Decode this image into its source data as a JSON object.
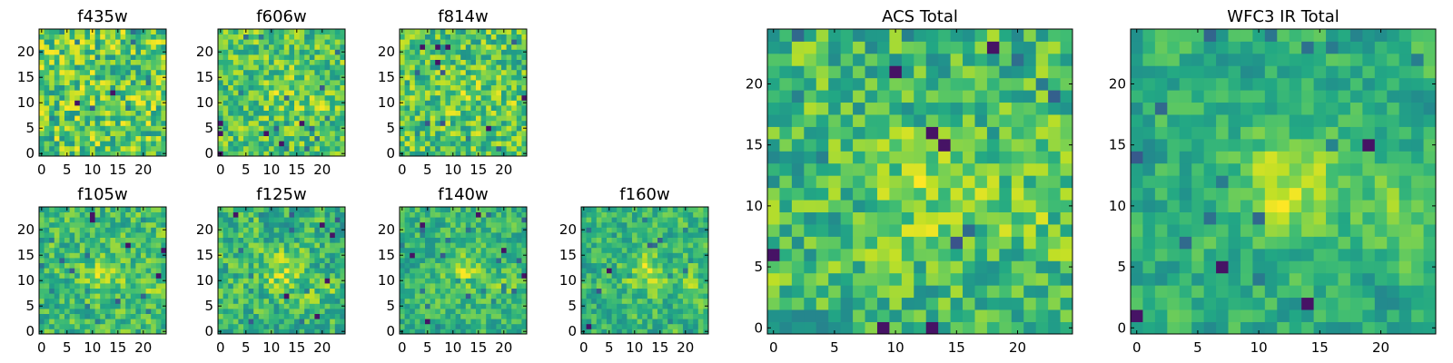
{
  "figure": {
    "colormap": "viridis",
    "grid_size": 25
  },
  "chart_data": [
    {
      "type": "heatmap",
      "title": "f435w",
      "x_ticks": [
        0,
        5,
        10,
        15,
        20
      ],
      "y_ticks": [
        0,
        5,
        10,
        15,
        20
      ],
      "xlim": [
        -0.5,
        24.5
      ],
      "ylim": [
        -0.5,
        24.5
      ],
      "blob": 0.0,
      "seed": 11
    },
    {
      "type": "heatmap",
      "title": "f606w",
      "x_ticks": [
        0,
        5,
        10,
        15,
        20
      ],
      "y_ticks": [
        0,
        5,
        10,
        15,
        20
      ],
      "xlim": [
        -0.5,
        24.5
      ],
      "ylim": [
        -0.5,
        24.5
      ],
      "blob": 0.3,
      "seed": 23
    },
    {
      "type": "heatmap",
      "title": "f814w",
      "x_ticks": [
        0,
        5,
        10,
        15,
        20
      ],
      "y_ticks": [
        0,
        5,
        10,
        15,
        20
      ],
      "xlim": [
        -0.5,
        24.5
      ],
      "ylim": [
        -0.5,
        24.5
      ],
      "blob": 0.2,
      "seed": 37
    },
    {
      "type": "heatmap",
      "title": "f105w",
      "x_ticks": [
        0,
        5,
        10,
        15,
        20
      ],
      "y_ticks": [
        0,
        5,
        10,
        15,
        20
      ],
      "xlim": [
        -0.5,
        24.5
      ],
      "ylim": [
        -0.5,
        24.5
      ],
      "blob": 0.5,
      "seed": 41
    },
    {
      "type": "heatmap",
      "title": "f125w",
      "x_ticks": [
        0,
        5,
        10,
        15,
        20
      ],
      "y_ticks": [
        0,
        5,
        10,
        15,
        20
      ],
      "xlim": [
        -0.5,
        24.5
      ],
      "ylim": [
        -0.5,
        24.5
      ],
      "blob": 0.5,
      "seed": 53
    },
    {
      "type": "heatmap",
      "title": "f140w",
      "x_ticks": [
        0,
        5,
        10,
        15,
        20
      ],
      "y_ticks": [
        0,
        5,
        10,
        15,
        20
      ],
      "xlim": [
        -0.5,
        24.5
      ],
      "ylim": [
        -0.5,
        24.5
      ],
      "blob": 0.6,
      "seed": 67
    },
    {
      "type": "heatmap",
      "title": "f160w",
      "x_ticks": [
        0,
        5,
        10,
        15,
        20
      ],
      "y_ticks": [
        0,
        5,
        10,
        15,
        20
      ],
      "xlim": [
        -0.5,
        24.5
      ],
      "ylim": [
        -0.5,
        24.5
      ],
      "blob": 0.6,
      "seed": 79
    },
    {
      "type": "heatmap",
      "title": "ACS Total",
      "x_ticks": [
        0,
        5,
        10,
        15,
        20
      ],
      "y_ticks": [
        0,
        5,
        10,
        15,
        20
      ],
      "xlim": [
        -0.5,
        24.5
      ],
      "ylim": [
        -0.5,
        24.5
      ],
      "blob": 0.4,
      "seed": 97
    },
    {
      "type": "heatmap",
      "title": "WFC3 IR Total",
      "x_ticks": [
        0,
        5,
        10,
        15,
        20
      ],
      "y_ticks": [
        0,
        5,
        10,
        15,
        20
      ],
      "xlim": [
        -0.5,
        24.5
      ],
      "ylim": [
        -0.5,
        24.5
      ],
      "blob": 0.8,
      "seed": 113
    }
  ]
}
